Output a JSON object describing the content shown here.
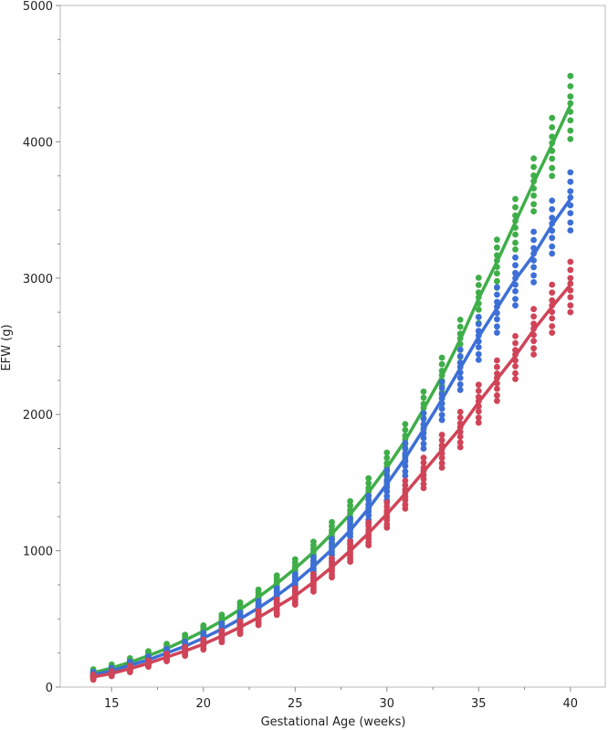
{
  "chart_data": {
    "type": "scatter",
    "xlabel": "Gestational Age (weeks)",
    "ylabel": "EFW (g)",
    "xlim": [
      12.2,
      41.9
    ],
    "ylim": [
      0,
      5000
    ],
    "x_ticks": [
      "15",
      "20",
      "25",
      "30",
      "35",
      "40"
    ],
    "y_ticks": [
      "0",
      "1000",
      "2000",
      "3000",
      "4000",
      "5000"
    ],
    "grid": false,
    "legend": "none",
    "series": [
      {
        "color": "#3fae49",
        "x": [
          14,
          15,
          16,
          17,
          18,
          19,
          20,
          21,
          22,
          23,
          24,
          25,
          26,
          27,
          28,
          29,
          30,
          31,
          32,
          33,
          34,
          35,
          36,
          37,
          38,
          39,
          40
        ],
        "fit": [
          105,
          140,
          182,
          230,
          283,
          345,
          410,
          485,
          570,
          660,
          760,
          870,
          990,
          1125,
          1270,
          1430,
          1610,
          1810,
          2040,
          2280,
          2550,
          2850,
          3120,
          3410,
          3700,
          3980,
          4270
        ],
        "spread": [
          30,
          30,
          35,
          40,
          40,
          45,
          50,
          55,
          60,
          65,
          70,
          80,
          90,
          100,
          110,
          120,
          130,
          140,
          150,
          160,
          170,
          180,
          190,
          200,
          210,
          230,
          250
        ]
      },
      {
        "color": "#3d6fd6",
        "x": [
          14,
          15,
          16,
          17,
          18,
          19,
          20,
          21,
          22,
          23,
          24,
          25,
          26,
          27,
          28,
          29,
          30,
          31,
          32,
          33,
          34,
          35,
          36,
          37,
          38,
          39,
          40
        ],
        "fit": [
          90,
          120,
          160,
          200,
          250,
          300,
          360,
          425,
          500,
          580,
          670,
          770,
          885,
          1010,
          1150,
          1310,
          1490,
          1680,
          1890,
          2110,
          2340,
          2570,
          2780,
          2990,
          3170,
          3390,
          3580
        ],
        "spread": [
          25,
          25,
          30,
          30,
          35,
          40,
          45,
          50,
          55,
          60,
          65,
          70,
          80,
          90,
          100,
          110,
          120,
          130,
          140,
          150,
          160,
          170,
          180,
          190,
          200,
          210,
          230
        ]
      },
      {
        "color": "#d04458",
        "x": [
          14,
          15,
          16,
          17,
          18,
          19,
          20,
          21,
          22,
          23,
          24,
          25,
          26,
          27,
          28,
          29,
          30,
          31,
          32,
          33,
          34,
          35,
          36,
          37,
          38,
          39,
          40
        ],
        "fit": [
          75,
          100,
          135,
          175,
          220,
          265,
          315,
          375,
          440,
          510,
          590,
          670,
          770,
          880,
          1000,
          1130,
          1270,
          1420,
          1580,
          1740,
          1900,
          2090,
          2260,
          2430,
          2620,
          2790,
          2950
        ],
        "spread": [
          20,
          20,
          25,
          25,
          30,
          35,
          40,
          45,
          50,
          55,
          60,
          65,
          70,
          75,
          80,
          90,
          100,
          110,
          120,
          130,
          140,
          150,
          160,
          170,
          180,
          190,
          200
        ]
      }
    ]
  }
}
